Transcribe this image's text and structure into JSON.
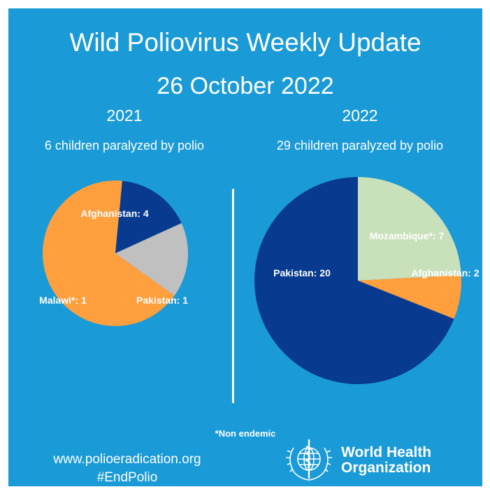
{
  "header": {
    "title": "Wild Poliovirus Weekly Update",
    "date": "26 October 2022"
  },
  "colors": {
    "background": "#1a9ad6",
    "text": "#ffffff",
    "afghanistan": "#ff9f3e",
    "pakistan": "#083a8f",
    "malawi": "#c0c0c0",
    "mozambique": "#c9e1bb"
  },
  "chart_data": [
    {
      "type": "pie",
      "title": "2021",
      "subtitle": "6 children paralyzed by polio",
      "categories": [
        "Afghanistan",
        "Pakistan",
        "Malawi*"
      ],
      "values": [
        4,
        1,
        1
      ],
      "labels": [
        "Afghanistan: 4",
        "Pakistan: 1",
        "Malawi*: 1"
      ],
      "colors": [
        "#ff9f3e",
        "#083a8f",
        "#c0c0c0"
      ]
    },
    {
      "type": "pie",
      "title": "2022",
      "subtitle": "29 children paralyzed by polio",
      "categories": [
        "Mozambique*",
        "Afghanistan",
        "Pakistan"
      ],
      "values": [
        7,
        2,
        20
      ],
      "labels": [
        "Mozambique*: 7",
        "Afghanistan: 2",
        "Pakistan: 20"
      ],
      "colors": [
        "#c9e1bb",
        "#ff9f3e",
        "#083a8f"
      ]
    }
  ],
  "footer": {
    "footnote": "*Non endemic",
    "url": "www.polioeradication.org",
    "hashtag": "#EndPolio",
    "org_line1": "World Health",
    "org_line2": "Organization",
    "logo_icon": "who-emblem-icon"
  }
}
